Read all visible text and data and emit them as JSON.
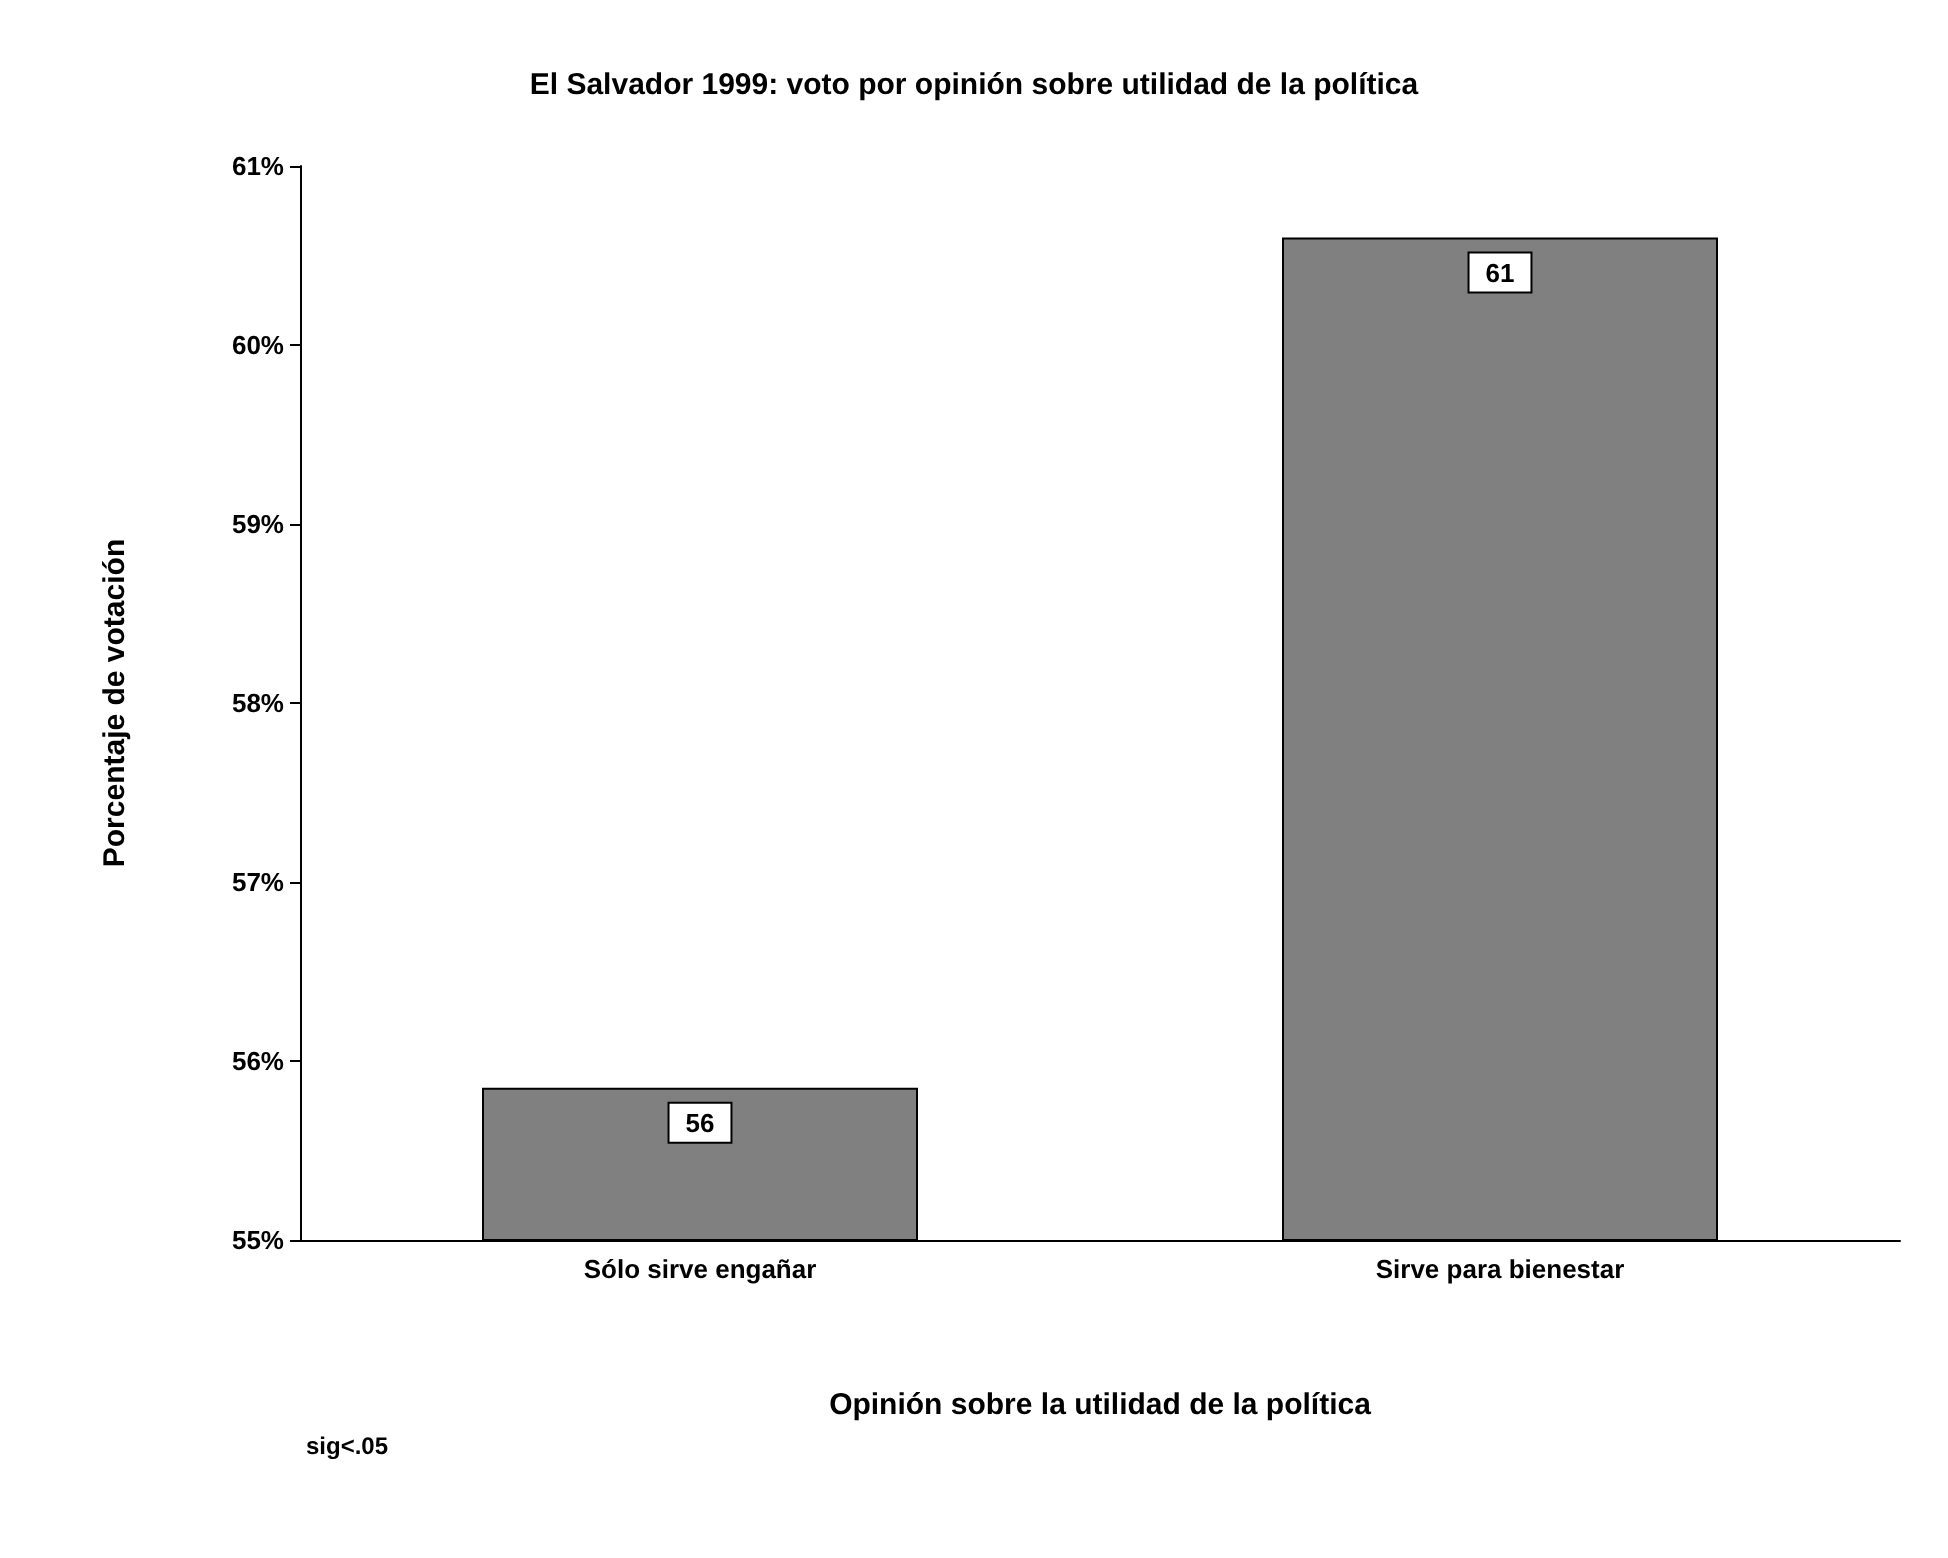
{
  "chart_data": {
    "type": "bar",
    "title": "El Salvador 1999: voto por opinión sobre utilidad de la política",
    "xlabel": "Opinión sobre la utilidad de la política",
    "ylabel": "Porcentaje de votación",
    "categories": [
      "Sólo sirve engañar",
      "Sirve para bienestar"
    ],
    "values": [
      55.85,
      60.6
    ],
    "value_labels": [
      "56",
      "61"
    ],
    "color": "#808080",
    "ylim": [
      55,
      61
    ],
    "yticks": [
      {
        "value": 55,
        "label": "55%"
      },
      {
        "value": 56,
        "label": "56%"
      },
      {
        "value": 57,
        "label": "57%"
      },
      {
        "value": 58,
        "label": "58%"
      },
      {
        "value": 59,
        "label": "59%"
      },
      {
        "value": 60,
        "label": "60%"
      },
      {
        "value": 61,
        "label": "61%"
      }
    ],
    "grid": false,
    "annotations": [
      "sig<.05"
    ]
  }
}
